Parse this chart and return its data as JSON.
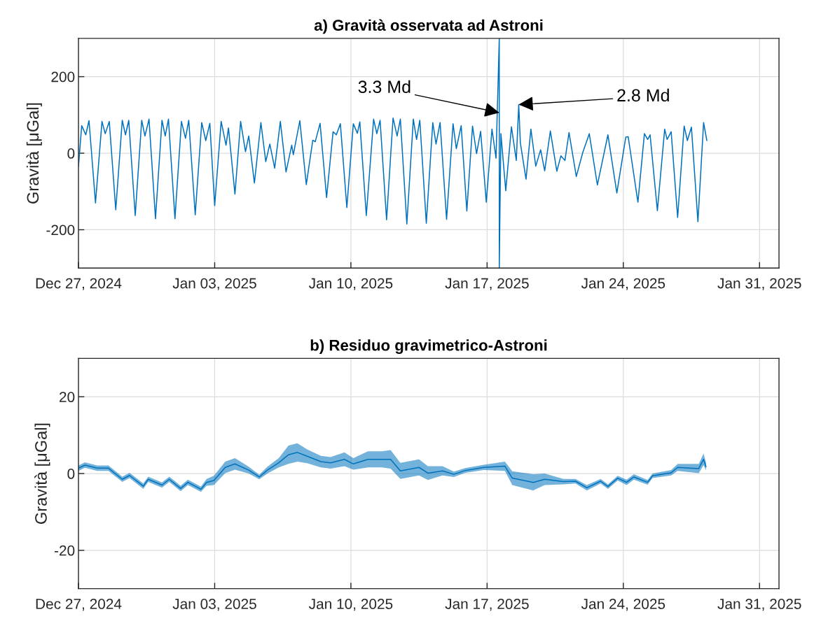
{
  "chart_data": [
    {
      "type": "line",
      "title": "a) Gravità osservata ad Astroni",
      "ylabel": "Gravità [μGal]",
      "x": [
        "2024-12-27T00:00",
        "2024-12-27T04:00",
        "2024-12-27T09:00",
        "2024-12-27T13:00",
        "2024-12-27T21:00",
        "2024-12-28T05:00",
        "2024-12-28T09:00",
        "2024-12-28T14:00",
        "2024-12-28T22:00",
        "2024-12-29T06:00",
        "2024-12-29T10:00",
        "2024-12-29T14:00",
        "2024-12-29T22:00",
        "2024-12-30T06:00",
        "2024-12-30T10:00",
        "2024-12-30T15:00",
        "2024-12-30T23:00",
        "2024-12-31T07:00",
        "2024-12-31T11:00",
        "2024-12-31T15:00",
        "2024-12-31T23:00",
        "2025-01-01T07:00",
        "2025-01-01T12:00",
        "2025-01-01T16:00",
        "2025-01-02T00:00",
        "2025-01-02T08:00",
        "2025-01-02T13:00",
        "2025-01-02T18:00",
        "2025-01-03T00:00",
        "2025-01-03T08:00",
        "2025-01-03T14:00",
        "2025-01-03T17:00",
        "2025-01-04T01:00",
        "2025-01-04T08:00",
        "2025-01-04T14:00",
        "2025-01-04T18:00",
        "2025-01-05T01:00",
        "2025-01-05T09:00",
        "2025-01-05T15:00",
        "2025-01-05T20:00",
        "2025-01-06T02:00",
        "2025-01-06T09:00",
        "2025-01-06T16:00",
        "2025-01-06T23:00",
        "2025-01-07T01:00",
        "2025-01-07T09:00",
        "2025-01-07T17:00",
        "2025-01-08T01:00",
        "2025-01-08T04:00",
        "2025-01-08T10:00",
        "2025-01-08T18:00",
        "2025-01-09T02:00",
        "2025-01-09T06:00",
        "2025-01-09T11:00",
        "2025-01-09T19:00",
        "2025-01-10T03:00",
        "2025-01-10T08:00",
        "2025-01-10T11:00",
        "2025-01-10T19:00",
        "2025-01-11T04:00",
        "2025-01-11T08:00",
        "2025-01-11T12:00",
        "2025-01-11T20:00",
        "2025-01-12T04:00",
        "2025-01-12T09:00",
        "2025-01-12T13:00",
        "2025-01-12T21:00",
        "2025-01-13T05:00",
        "2025-01-13T09:00",
        "2025-01-13T13:00",
        "2025-01-13T21:00",
        "2025-01-14T05:00",
        "2025-01-14T09:00",
        "2025-01-14T14:00",
        "2025-01-14T22:00",
        "2025-01-15T06:00",
        "2025-01-15T10:00",
        "2025-01-15T16:00",
        "2025-01-15T23:00",
        "2025-01-16T06:00",
        "2025-01-16T11:00",
        "2025-01-16T16:00",
        "2025-01-16T23:00",
        "2025-01-17T06:00",
        "2025-01-17T11:00",
        "2025-01-17T15:00",
        "2025-01-17T15:00",
        "2025-01-17T17:00",
        "2025-01-17T23:00",
        "2025-01-18T06:00",
        "2025-01-18T12:00",
        "2025-01-18T15:00",
        "2025-01-18T17:00",
        "2025-01-19T00:00",
        "2025-01-19T06:00",
        "2025-01-19T12:00",
        "2025-01-19T18:00",
        "2025-01-19T23:00",
        "2025-01-20T06:00",
        "2025-01-20T14:00",
        "2025-01-20T19:00",
        "2025-01-21T00:00",
        "2025-01-21T05:00",
        "2025-01-21T14:00",
        "2025-01-21T22:00",
        "2025-01-22T06:00",
        "2025-01-22T16:00",
        "2025-01-23T05:00",
        "2025-01-23T16:00",
        "2025-01-24T03:00",
        "2025-01-24T06:00",
        "2025-01-24T18:00",
        "2025-01-25T02:00",
        "2025-01-25T06:00",
        "2025-01-25T09:00",
        "2025-01-25T18:00",
        "2025-01-26T03:00",
        "2025-01-26T06:00",
        "2025-01-26T11:00",
        "2025-01-26T19:00",
        "2025-01-27T03:00",
        "2025-01-27T07:00",
        "2025-01-27T12:00",
        "2025-01-27T20:00",
        "2025-01-28T03:00",
        "2025-01-28T07:00"
      ],
      "series": [
        {
          "color": "#0072bd",
          "values": [
            -35,
            72,
            48,
            85,
            -130,
            83,
            51,
            83,
            -148,
            86,
            48,
            86,
            -163,
            86,
            45,
            89,
            -171,
            86,
            45,
            89,
            -171,
            83,
            39,
            86,
            -161,
            80,
            33,
            78,
            -137,
            83,
            21,
            66,
            -107,
            83,
            4,
            45,
            -78,
            80,
            -22,
            24,
            -39,
            83,
            -49,
            21,
            -4,
            85,
            -82,
            34,
            30,
            78,
            -116,
            56,
            48,
            77,
            -142,
            77,
            52,
            82,
            -163,
            89,
            51,
            86,
            -174,
            92,
            45,
            89,
            -185,
            89,
            36,
            86,
            -183,
            80,
            24,
            80,
            -173,
            77,
            12,
            72,
            -151,
            71,
            -1,
            57,
            -128,
            63,
            -13,
            300,
            -300,
            51,
            -98,
            69,
            -19,
            127,
            27,
            -68,
            63,
            -34,
            9,
            -46,
            58,
            -47,
            -7,
            -19,
            54,
            -61,
            2,
            51,
            -83,
            48,
            -104,
            42,
            43,
            -128,
            51,
            36,
            48,
            -150,
            63,
            36,
            56,
            -168,
            71,
            33,
            68,
            -179,
            80,
            33
          ]
        }
      ],
      "xlim": [
        "2024-12-27",
        "2025-02-01"
      ],
      "xticks": [
        {
          "value": "2024-12-27",
          "label": "Dec 27, 2024"
        },
        {
          "value": "2025-01-03",
          "label": "Jan 03, 2025"
        },
        {
          "value": "2025-01-10",
          "label": "Jan 10, 2025"
        },
        {
          "value": "2025-01-17",
          "label": "Jan 17, 2025"
        },
        {
          "value": "2025-01-24",
          "label": "Jan 24, 2025"
        },
        {
          "value": "2025-01-31",
          "label": "Jan 31, 2025"
        }
      ],
      "ylim": [
        -300,
        300
      ],
      "yticks": [
        -200,
        0,
        200
      ],
      "grid": true,
      "annotations": [
        {
          "text": "3.3 Md",
          "x": "2025-01-17T15:00",
          "y": 106
        },
        {
          "text": "2.8 Md",
          "x": "2025-01-18T15:00",
          "y": 127
        }
      ]
    },
    {
      "type": "line",
      "title": "b) Residuo gravimetrico-Astroni",
      "ylabel": "Gravità [μGal]",
      "x": [
        "2024-12-27T00:00",
        "2024-12-27T08:00",
        "2024-12-27T23:00",
        "2024-12-28T13:00",
        "2024-12-29T06:00",
        "2024-12-29T15:00",
        "2024-12-30T08:00",
        "2024-12-30T14:00",
        "2024-12-31T07:00",
        "2024-12-31T16:00",
        "2025-01-01T06:00",
        "2025-01-01T15:00",
        "2025-01-02T07:00",
        "2025-01-02T14:00",
        "2025-01-02T23:00",
        "2025-01-03T13:00",
        "2025-01-04T01:00",
        "2025-01-04T18:00",
        "2025-01-05T07:00",
        "2025-01-05T17:00",
        "2025-01-06T07:00",
        "2025-01-06T19:00",
        "2025-01-07T06:00",
        "2025-01-07T18:00",
        "2025-01-08T11:00",
        "2025-01-08T23:00",
        "2025-01-09T16:00",
        "2025-01-10T03:00",
        "2025-01-10T21:00",
        "2025-01-11T14:00",
        "2025-01-12T01:00",
        "2025-01-12T13:00",
        "2025-01-13T12:00",
        "2025-01-13T23:00",
        "2025-01-14T17:00",
        "2025-01-15T07:00",
        "2025-01-15T21:00",
        "2025-01-16T20:00",
        "2025-01-17T22:00",
        "2025-01-18T07:00",
        "2025-01-19T09:00",
        "2025-01-19T23:00",
        "2025-01-20T22:00",
        "2025-01-21T13:00",
        "2025-01-22T03:00",
        "2025-01-22T20:00",
        "2025-01-23T05:00",
        "2025-01-23T17:00",
        "2025-01-24T04:00",
        "2025-01-24T13:00",
        "2025-01-25T06:00",
        "2025-01-25T12:00",
        "2025-01-26T11:00",
        "2025-01-26T19:00",
        "2025-01-27T21:00",
        "2025-01-28T03:00",
        "2025-01-28T06:00"
      ],
      "series": [
        {
          "color": "#0072bd",
          "values": [
            1.4,
            2.2,
            1.4,
            1.4,
            -1.5,
            -0.5,
            -3.3,
            -1.5,
            -3.0,
            -1.5,
            -3.9,
            -2.3,
            -4.1,
            -2.3,
            -1.8,
            1.6,
            2.5,
            0.9,
            -0.9,
            0.9,
            2.8,
            4.9,
            5.5,
            4.5,
            3.1,
            2.8,
            3.7,
            2.5,
            3.7,
            3.7,
            3.7,
            0.7,
            1.6,
            0.1,
            0.7,
            -0.2,
            0.8,
            1.6,
            1.9,
            -1.2,
            -2.3,
            -1.5,
            -2.1,
            -2.0,
            -3.7,
            -2.0,
            -3.4,
            -1.2,
            -2.3,
            -0.9,
            -2.3,
            -0.6,
            0.2,
            1.6,
            1.3,
            3.7,
            1.8
          ],
          "lower": [
            0.7,
            1.5,
            0.7,
            0.7,
            -2.2,
            -1.2,
            -4.0,
            -2.2,
            -3.7,
            -2.2,
            -4.6,
            -3.0,
            -4.8,
            -3.2,
            -3.0,
            0.1,
            1.0,
            0.0,
            -1.5,
            0.0,
            1.6,
            2.5,
            3.1,
            2.7,
            1.6,
            1.3,
            1.9,
            1.0,
            1.6,
            1.6,
            1.3,
            -1.4,
            -0.5,
            -1.7,
            -0.5,
            -0.9,
            0.2,
            0.9,
            0.7,
            -3.0,
            -4.4,
            -3.0,
            -2.8,
            -2.6,
            -4.4,
            -2.6,
            -4.0,
            -1.8,
            -3.0,
            -1.6,
            -2.9,
            -1.2,
            -0.5,
            0.7,
            0.1,
            2.2,
            0.8
          ],
          "upper": [
            2.1,
            2.9,
            2.1,
            2.1,
            -0.8,
            0.2,
            -2.6,
            -0.8,
            -2.3,
            -0.8,
            -3.2,
            -1.6,
            -3.4,
            -1.4,
            -0.6,
            3.1,
            4.0,
            1.8,
            -0.3,
            1.8,
            4.0,
            7.3,
            7.9,
            6.3,
            4.6,
            4.3,
            5.5,
            4.0,
            5.8,
            5.8,
            6.1,
            2.8,
            3.7,
            1.9,
            1.9,
            0.5,
            1.4,
            2.3,
            3.1,
            0.6,
            -0.2,
            0.0,
            -1.4,
            -1.4,
            -3.0,
            -1.4,
            -2.8,
            -0.6,
            -1.6,
            -0.2,
            -1.7,
            0.0,
            0.9,
            2.5,
            2.5,
            5.2,
            2.8
          ]
        }
      ],
      "xlim": [
        "2024-12-27",
        "2025-02-01"
      ],
      "xticks": [
        {
          "value": "2024-12-27",
          "label": "Dec 27, 2024"
        },
        {
          "value": "2025-01-03",
          "label": "Jan 03, 2025"
        },
        {
          "value": "2025-01-10",
          "label": "Jan 10, 2025"
        },
        {
          "value": "2025-01-17",
          "label": "Jan 17, 2025"
        },
        {
          "value": "2025-01-24",
          "label": "Jan 24, 2025"
        },
        {
          "value": "2025-01-31",
          "label": "Jan 31, 2025"
        }
      ],
      "ylim": [
        -30,
        30
      ],
      "yticks": [
        -20,
        0,
        20
      ],
      "grid": true
    }
  ]
}
